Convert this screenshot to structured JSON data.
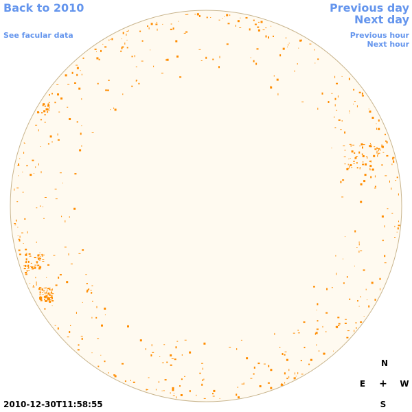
{
  "nav": {
    "back_year": "Back to 2010",
    "facular_data": "See facular data",
    "previous_day": "Previous day",
    "next_day": "Next day",
    "previous_hour": "Previous hour",
    "next_hour": "Next hour"
  },
  "compass": {
    "north": "N",
    "south": "S",
    "east": "E",
    "west": "W",
    "center": "+"
  },
  "timestamp": "2010-12-30T11:58:55",
  "colors": {
    "link": "#6495ed",
    "disk_fill": "#fffaf0",
    "disk_edge": "#c8b48c",
    "facula": "#ff8c00"
  }
}
